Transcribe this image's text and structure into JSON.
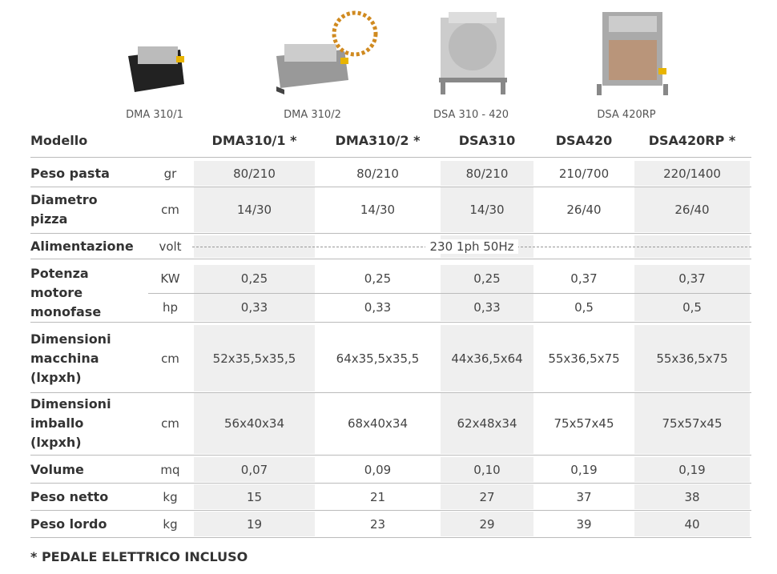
{
  "products": [
    {
      "caption": "DMA 310/1"
    },
    {
      "caption": "DMA 310/2"
    },
    {
      "caption": "DSA 310 - 420"
    },
    {
      "caption": "DSA 420RP"
    }
  ],
  "table": {
    "header": [
      "Modello",
      "DMA310/1 *",
      "DMA310/2 *",
      "DSA310",
      "DSA420",
      "DSA420RP *"
    ],
    "rows": [
      {
        "label": [
          "Peso pasta"
        ],
        "sub": [
          {
            "unit": "gr",
            "values": [
              "80/210",
              "80/210",
              "80/210",
              "210/700",
              "220/1400"
            ]
          }
        ]
      },
      {
        "label": [
          "Diametro",
          "pizza"
        ],
        "sub": [
          {
            "unit": "cm",
            "values": [
              "14/30",
              "14/30",
              "14/30",
              "26/40",
              "26/40"
            ]
          }
        ]
      },
      {
        "label": [
          "Alimentazione"
        ],
        "sub": [
          {
            "unit": "volt",
            "span": "230 1ph 50Hz"
          }
        ]
      },
      {
        "label": [
          "Potenza",
          "motore",
          "monofase"
        ],
        "sub": [
          {
            "unit": "KW",
            "values": [
              "0,25",
              "0,25",
              "0,25",
              "0,37",
              "0,37"
            ]
          },
          {
            "unit": "hp",
            "values": [
              "0,33",
              "0,33",
              "0,33",
              "0,5",
              "0,5"
            ]
          }
        ]
      },
      {
        "label": [
          "Dimensioni",
          "macchina",
          "(lxpxh)"
        ],
        "sub": [
          {
            "unit": "cm",
            "values": [
              "52x35,5x35,5",
              "64x35,5x35,5",
              "44x36,5x64",
              "55x36,5x75",
              "55x36,5x75"
            ]
          }
        ]
      },
      {
        "label": [
          "Dimensioni",
          "imballo",
          "(lxpxh)"
        ],
        "sub": [
          {
            "unit": "cm",
            "values": [
              "56x40x34",
              "68x40x34",
              "62x48x34",
              "75x57x45",
              "75x57x45"
            ]
          }
        ]
      },
      {
        "label": [
          "Volume"
        ],
        "sub": [
          {
            "unit": "mq",
            "values": [
              "0,07",
              "0,09",
              "0,10",
              "0,19",
              "0,19"
            ]
          }
        ]
      },
      {
        "label": [
          "Peso netto"
        ],
        "sub": [
          {
            "unit": "kg",
            "values": [
              "15",
              "21",
              "27",
              "37",
              "38"
            ]
          }
        ]
      },
      {
        "label": [
          "Peso lordo"
        ],
        "sub": [
          {
            "unit": "kg",
            "values": [
              "19",
              "23",
              "29",
              "39",
              "40"
            ]
          }
        ]
      }
    ]
  },
  "footnote": "* PEDALE ELETTRICO INCLUSO"
}
